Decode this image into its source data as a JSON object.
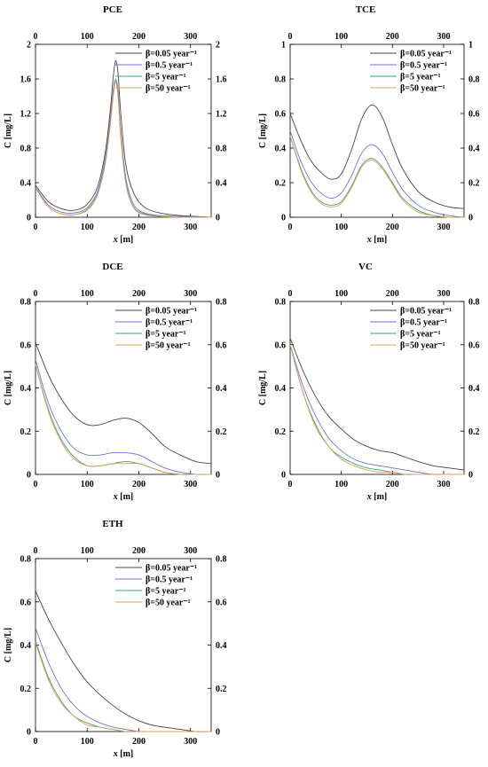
{
  "colors": {
    "black": "#444444",
    "blue": "#6e6ee6",
    "green": "#3aa37a",
    "orange": "#e0a050"
  },
  "legend": [
    {
      "label": "β=0.05 year⁻¹",
      "color": "#444444"
    },
    {
      "label": "β=0.5 year⁻¹",
      "color": "#6e6ee6"
    },
    {
      "label": "β=5 year⁻¹",
      "color": "#3aa37a"
    },
    {
      "label": "β=50 year⁻¹",
      "color": "#e0a050"
    }
  ],
  "chart_data": [
    {
      "type": "line",
      "title": "PCE",
      "xlabel": "x [m]",
      "ylabel": "C [mg/L]",
      "xlim": [
        0,
        340
      ],
      "ylim": [
        0,
        2
      ],
      "xticks": [
        0,
        100,
        200,
        300
      ],
      "yticks": [
        0,
        0.4,
        0.8,
        1.2,
        1.6,
        2
      ],
      "ytick_labels": [
        "0",
        "0.4",
        "0.8",
        "1.2",
        "1.6",
        "2"
      ],
      "x": [
        0,
        25,
        50,
        75,
        100,
        120,
        135,
        145,
        150,
        155,
        160,
        165,
        175,
        190,
        210,
        240,
        280,
        340
      ],
      "series": [
        {
          "name": "β=0.05 year⁻¹",
          "values": [
            0.37,
            0.18,
            0.1,
            0.08,
            0.15,
            0.35,
            0.75,
            1.25,
            1.6,
            1.81,
            1.65,
            1.2,
            0.6,
            0.28,
            0.12,
            0.05,
            0.02,
            0.0
          ]
        },
        {
          "name": "β=0.5 year⁻¹",
          "values": [
            0.35,
            0.14,
            0.06,
            0.05,
            0.11,
            0.3,
            0.68,
            1.15,
            1.45,
            1.6,
            1.45,
            1.0,
            0.45,
            0.15,
            0.05,
            0.02,
            0.01,
            0.0
          ]
        },
        {
          "name": "β=5 year⁻¹",
          "values": [
            0.34,
            0.12,
            0.04,
            0.03,
            0.09,
            0.27,
            0.64,
            1.1,
            1.4,
            1.58,
            1.4,
            0.95,
            0.4,
            0.12,
            0.04,
            0.01,
            0.0,
            0.0
          ]
        },
        {
          "name": "β=50 year⁻¹",
          "values": [
            0.34,
            0.12,
            0.04,
            0.03,
            0.08,
            0.26,
            0.62,
            1.08,
            1.38,
            1.56,
            1.38,
            0.93,
            0.38,
            0.11,
            0.03,
            0.01,
            0.0,
            0.0
          ]
        }
      ]
    },
    {
      "type": "line",
      "title": "TCE",
      "xlabel": "x [m]",
      "ylabel": "C [mg/L]",
      "xlim": [
        0,
        340
      ],
      "ylim": [
        0,
        1
      ],
      "xticks": [
        0,
        100,
        200,
        300
      ],
      "yticks": [
        0,
        0.2,
        0.4,
        0.6,
        0.8,
        1
      ],
      "ytick_labels": [
        "0",
        "0.2",
        "0.4",
        "0.6",
        "0.8",
        "1"
      ],
      "x": [
        0,
        20,
        40,
        60,
        80,
        100,
        120,
        140,
        160,
        180,
        200,
        220,
        250,
        280,
        310,
        340
      ],
      "series": [
        {
          "name": "β=0.05 year⁻¹",
          "values": [
            0.6,
            0.45,
            0.33,
            0.26,
            0.22,
            0.25,
            0.39,
            0.57,
            0.65,
            0.58,
            0.42,
            0.28,
            0.15,
            0.09,
            0.06,
            0.05
          ]
        },
        {
          "name": "β=0.5 year⁻¹",
          "values": [
            0.5,
            0.33,
            0.21,
            0.14,
            0.11,
            0.14,
            0.24,
            0.37,
            0.42,
            0.37,
            0.26,
            0.16,
            0.07,
            0.03,
            0.01,
            0.0
          ]
        },
        {
          "name": "β=5 year⁻¹",
          "values": [
            0.47,
            0.29,
            0.16,
            0.09,
            0.07,
            0.09,
            0.18,
            0.3,
            0.34,
            0.29,
            0.2,
            0.11,
            0.04,
            0.01,
            0.0,
            0.0
          ]
        },
        {
          "name": "β=50 year⁻¹",
          "values": [
            0.47,
            0.28,
            0.15,
            0.08,
            0.06,
            0.08,
            0.17,
            0.29,
            0.33,
            0.28,
            0.19,
            0.1,
            0.03,
            0.01,
            0.0,
            0.0
          ]
        }
      ]
    },
    {
      "type": "line",
      "title": "DCE",
      "xlabel": "x [m]",
      "ylabel": "C [mg/L]",
      "xlim": [
        0,
        340
      ],
      "ylim": [
        0,
        0.8
      ],
      "xticks": [
        0,
        100,
        200,
        300
      ],
      "yticks": [
        0,
        0.2,
        0.4,
        0.6,
        0.8
      ],
      "ytick_labels": [
        "0",
        "0.2",
        "0.4",
        "0.6",
        "0.8"
      ],
      "x": [
        0,
        25,
        50,
        75,
        100,
        125,
        150,
        175,
        200,
        225,
        250,
        280,
        310,
        340
      ],
      "series": [
        {
          "name": "β=0.05 year⁻¹",
          "values": [
            0.61,
            0.46,
            0.35,
            0.27,
            0.23,
            0.23,
            0.25,
            0.26,
            0.24,
            0.19,
            0.13,
            0.09,
            0.06,
            0.05
          ]
        },
        {
          "name": "β=0.5 year⁻¹",
          "values": [
            0.53,
            0.33,
            0.2,
            0.12,
            0.09,
            0.09,
            0.1,
            0.1,
            0.09,
            0.06,
            0.03,
            0.01,
            0.0,
            0.0
          ]
        },
        {
          "name": "β=5 year⁻¹",
          "values": [
            0.51,
            0.3,
            0.16,
            0.08,
            0.04,
            0.04,
            0.05,
            0.06,
            0.05,
            0.03,
            0.01,
            0.0,
            0.0,
            0.0
          ]
        },
        {
          "name": "β=50 year⁻¹",
          "values": [
            0.51,
            0.29,
            0.15,
            0.07,
            0.04,
            0.04,
            0.05,
            0.05,
            0.05,
            0.03,
            0.01,
            0.0,
            0.0,
            0.0
          ]
        }
      ]
    },
    {
      "type": "line",
      "title": "VC",
      "xlabel": "x [m]",
      "ylabel": "C [mg/L]",
      "xlim": [
        0,
        340
      ],
      "ylim": [
        0,
        0.8
      ],
      "xticks": [
        0,
        100,
        200,
        300
      ],
      "yticks": [
        0,
        0.2,
        0.4,
        0.6,
        0.8
      ],
      "ytick_labels": [
        "0",
        "0.2",
        "0.4",
        "0.6",
        "0.8"
      ],
      "x": [
        0,
        25,
        50,
        75,
        100,
        125,
        150,
        175,
        200,
        225,
        250,
        280,
        310,
        340
      ],
      "series": [
        {
          "name": "β=0.05 year⁻¹",
          "values": [
            0.63,
            0.48,
            0.36,
            0.27,
            0.21,
            0.16,
            0.13,
            0.11,
            0.1,
            0.08,
            0.06,
            0.04,
            0.03,
            0.02
          ]
        },
        {
          "name": "β=0.5 year⁻¹",
          "values": [
            0.6,
            0.41,
            0.27,
            0.17,
            0.11,
            0.07,
            0.05,
            0.04,
            0.03,
            0.02,
            0.01,
            0.0,
            0.0,
            0.0
          ]
        },
        {
          "name": "β=5 year⁻¹",
          "values": [
            0.6,
            0.38,
            0.23,
            0.13,
            0.08,
            0.05,
            0.03,
            0.02,
            0.01,
            0.0,
            0.0,
            0.0,
            0.0,
            0.0
          ]
        },
        {
          "name": "β=50 year⁻¹",
          "values": [
            0.6,
            0.38,
            0.22,
            0.13,
            0.07,
            0.04,
            0.02,
            0.01,
            0.01,
            0.0,
            0.0,
            0.0,
            0.0,
            0.0
          ]
        }
      ]
    },
    {
      "type": "line",
      "title": "ETH",
      "xlabel": "x [m]",
      "ylabel": "C [mg/L]",
      "xlim": [
        0,
        340
      ],
      "ylim": [
        0,
        0.8
      ],
      "xticks": [
        0,
        100,
        200,
        300
      ],
      "yticks": [
        0,
        0.2,
        0.4,
        0.6,
        0.8
      ],
      "ytick_labels": [
        "0",
        "0.2",
        "0.4",
        "0.6",
        "0.8"
      ],
      "x": [
        0,
        25,
        50,
        75,
        100,
        125,
        150,
        175,
        200,
        225,
        250,
        280,
        310,
        340
      ],
      "series": [
        {
          "name": "β=0.05 year⁻¹",
          "values": [
            0.65,
            0.52,
            0.41,
            0.31,
            0.23,
            0.17,
            0.12,
            0.08,
            0.05,
            0.03,
            0.02,
            0.01,
            0.0,
            0.0
          ]
        },
        {
          "name": "β=0.5 year⁻¹",
          "values": [
            0.48,
            0.32,
            0.2,
            0.12,
            0.07,
            0.04,
            0.02,
            0.01,
            0.0,
            0.0,
            0.0,
            0.0,
            0.0,
            0.0
          ]
        },
        {
          "name": "β=5 year⁻¹",
          "values": [
            0.42,
            0.25,
            0.14,
            0.07,
            0.04,
            0.02,
            0.01,
            0.0,
            0.0,
            0.0,
            0.0,
            0.0,
            0.0,
            0.0
          ]
        },
        {
          "name": "β=50 year⁻¹",
          "values": [
            0.41,
            0.24,
            0.13,
            0.07,
            0.03,
            0.02,
            0.01,
            0.0,
            0.0,
            0.0,
            0.0,
            0.0,
            0.0,
            0.0
          ]
        }
      ]
    }
  ]
}
